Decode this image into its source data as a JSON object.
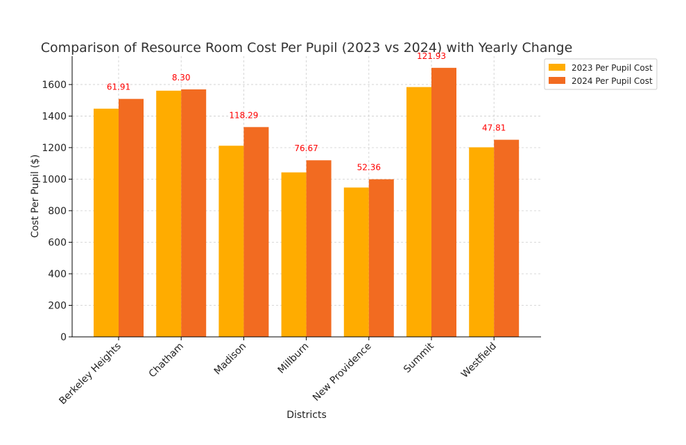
{
  "chart_data": {
    "type": "bar",
    "title": "Comparison of Resource Room Cost Per Pupil (2023 vs 2024) with Yearly Change",
    "xlabel": "Districts",
    "ylabel": "Cost Per Pupil ($)",
    "ylim": [
      0,
      1780
    ],
    "yticks": [
      0,
      200,
      400,
      600,
      800,
      1000,
      1200,
      1400,
      1600
    ],
    "grid": true,
    "legend_position": "top-right",
    "categories": [
      "Berkeley Heights",
      "Chatham",
      "Madison",
      "Millburn",
      "New Providence",
      "Summit",
      "Westfield"
    ],
    "series": [
      {
        "name": "2023 Per Pupil Cost",
        "color": "#ffac00",
        "values": [
          1447,
          1561,
          1212,
          1043,
          947,
          1584,
          1202
        ]
      },
      {
        "name": "2024 Per Pupil Cost",
        "color": "#f26b21",
        "values": [
          1508.91,
          1569.3,
          1330.29,
          1119.67,
          999.36,
          1705.93,
          1249.81
        ]
      }
    ],
    "annotations": [
      "61.91",
      "8.30",
      "118.29",
      "76.67",
      "52.36",
      "121.93",
      "47.81"
    ],
    "annotation_color": "#ff0000"
  }
}
